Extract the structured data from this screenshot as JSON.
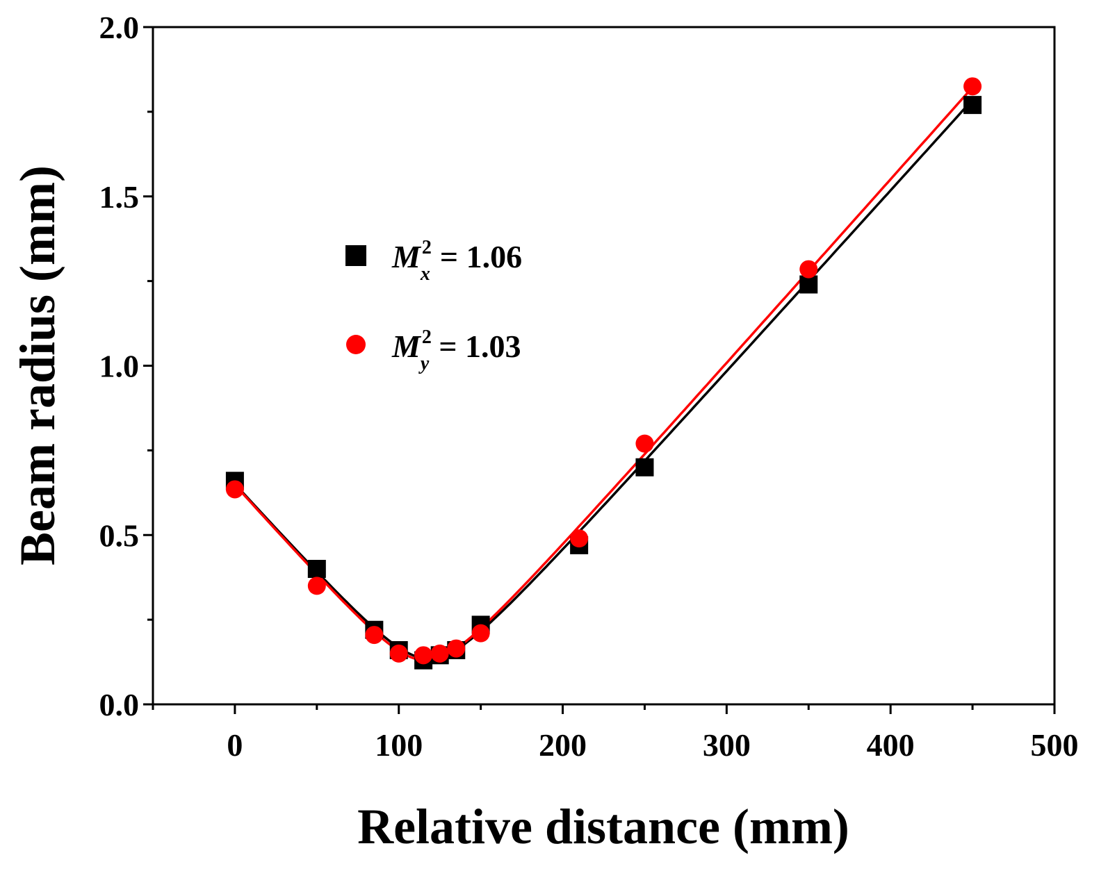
{
  "chart_data": {
    "type": "scatter",
    "xlabel": "Relative distance (mm)",
    "ylabel": "Beam radius (mm)",
    "xlim": [
      -50,
      500
    ],
    "ylim": [
      0.0,
      2.0
    ],
    "x_ticks": [
      0,
      100,
      200,
      300,
      400,
      500
    ],
    "x_tick_labels": [
      "0",
      "100",
      "200",
      "300",
      "400",
      "500"
    ],
    "y_ticks": [
      0.0,
      0.5,
      1.0,
      1.5,
      2.0
    ],
    "y_tick_labels": [
      "0.0",
      "0.5",
      "1.0",
      "1.5",
      "2.0"
    ],
    "legend_position": "upper-left",
    "series": [
      {
        "name": "Mx",
        "legend": {
          "main": "M",
          "sup": "2",
          "sub": "x",
          "value": "= 1.06"
        },
        "color": "#000000",
        "marker": "square",
        "points": [
          {
            "x": 0,
            "y": 0.66
          },
          {
            "x": 50,
            "y": 0.4
          },
          {
            "x": 85,
            "y": 0.22
          },
          {
            "x": 100,
            "y": 0.16
          },
          {
            "x": 115,
            "y": 0.13
          },
          {
            "x": 125,
            "y": 0.145
          },
          {
            "x": 135,
            "y": 0.16
          },
          {
            "x": 150,
            "y": 0.235
          },
          {
            "x": 210,
            "y": 0.47
          },
          {
            "x": 250,
            "y": 0.7
          },
          {
            "x": 350,
            "y": 1.24
          },
          {
            "x": 450,
            "y": 1.77
          }
        ],
        "fit": {
          "w0": 0.135,
          "z0": 118.5,
          "slope": 0.00537
        }
      },
      {
        "name": "My",
        "legend": {
          "main": "M",
          "sup": "2",
          "sub": "y",
          "value": "= 1.03"
        },
        "color": "#ff0000",
        "marker": "circle",
        "points": [
          {
            "x": 0,
            "y": 0.635
          },
          {
            "x": 50,
            "y": 0.35
          },
          {
            "x": 85,
            "y": 0.205
          },
          {
            "x": 100,
            "y": 0.15
          },
          {
            "x": 115,
            "y": 0.145
          },
          {
            "x": 125,
            "y": 0.15
          },
          {
            "x": 135,
            "y": 0.165
          },
          {
            "x": 150,
            "y": 0.21
          },
          {
            "x": 210,
            "y": 0.49
          },
          {
            "x": 250,
            "y": 0.77
          },
          {
            "x": 350,
            "y": 1.285
          },
          {
            "x": 450,
            "y": 1.825
          }
        ],
        "fit": {
          "w0": 0.13,
          "z0": 116.5,
          "slope": 0.00545
        }
      }
    ]
  }
}
